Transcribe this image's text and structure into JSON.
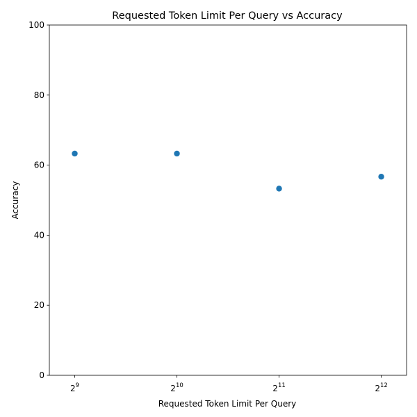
{
  "chart_data": {
    "type": "scatter",
    "title": "Requested Token Limit Per Query vs Accuracy",
    "xlabel": "Requested Token Limit Per Query",
    "ylabel": "Accuracy",
    "xscale": "log2",
    "xlim": [
      431,
      4864
    ],
    "ylim": [
      0,
      100
    ],
    "xticks": [
      {
        "value": 512,
        "base": "2",
        "exp": "9"
      },
      {
        "value": 1024,
        "base": "2",
        "exp": "10"
      },
      {
        "value": 2048,
        "base": "2",
        "exp": "11"
      },
      {
        "value": 4096,
        "base": "2",
        "exp": "12"
      }
    ],
    "yticks": [
      {
        "value": 0,
        "label": "0"
      },
      {
        "value": 20,
        "label": "20"
      },
      {
        "value": 40,
        "label": "40"
      },
      {
        "value": 60,
        "label": "60"
      },
      {
        "value": 80,
        "label": "80"
      },
      {
        "value": 100,
        "label": "100"
      }
    ],
    "points": [
      {
        "x": 512,
        "y": 63.3
      },
      {
        "x": 1024,
        "y": 63.3
      },
      {
        "x": 2048,
        "y": 53.3
      },
      {
        "x": 4096,
        "y": 56.7
      }
    ],
    "marker_color": "#1f77b4",
    "grid": false,
    "legend": "none"
  }
}
